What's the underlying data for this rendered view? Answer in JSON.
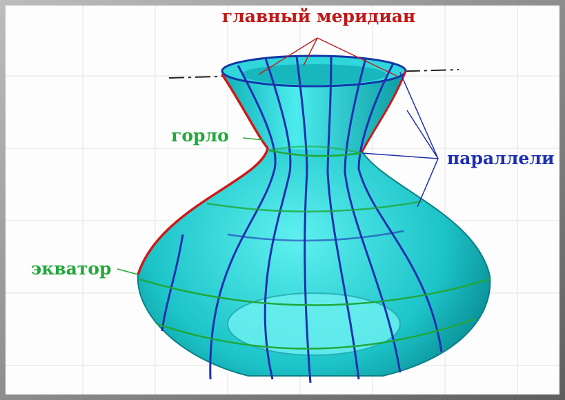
{
  "labels": {
    "main_meridian": "главный меридиан",
    "throat": "горло",
    "parallels": "параллели",
    "equator": "экватор"
  }
}
